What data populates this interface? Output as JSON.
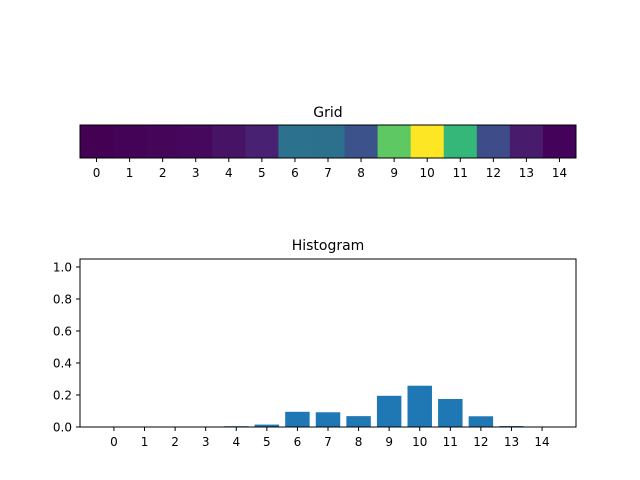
{
  "chart_data": [
    {
      "type": "heatmap",
      "title": "Grid",
      "colormap": "viridis",
      "x_ticks": [
        "0",
        "1",
        "2",
        "3",
        "4",
        "5",
        "6",
        "7",
        "8",
        "9",
        "10",
        "11",
        "12",
        "13",
        "14"
      ],
      "colors": [
        "#440154",
        "#440356",
        "#450558",
        "#46085c",
        "#471365",
        "#482172",
        "#2c728e",
        "#2d708e",
        "#3b528b",
        "#5ec962",
        "#fde725",
        "#35b779",
        "#3e4c8a",
        "#481b6d",
        "#44025a"
      ]
    },
    {
      "type": "bar",
      "title": "Histogram",
      "categories": [
        "0",
        "1",
        "2",
        "3",
        "4",
        "5",
        "6",
        "7",
        "8",
        "9",
        "10",
        "11",
        "12",
        "13",
        "14"
      ],
      "values": [
        0.001,
        0.001,
        0.001,
        0.002,
        0.005,
        0.015,
        0.095,
        0.092,
        0.068,
        0.195,
        0.258,
        0.175,
        0.067,
        0.006,
        0.001
      ],
      "ylim": [
        0,
        1.05
      ],
      "y_ticks": [
        "0.0",
        "0.2",
        "0.4",
        "0.6",
        "0.8",
        "1.0"
      ],
      "bar_color": "#1f77b4"
    }
  ]
}
